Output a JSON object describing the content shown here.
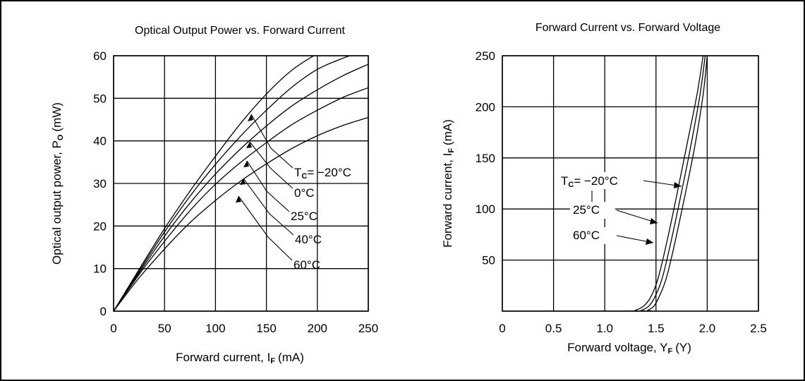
{
  "chart_data": [
    {
      "type": "line",
      "title": "Optical Output Power vs. Forward Current",
      "xlabel": "Forward current, I",
      "xlabel_sub": "F",
      "xlabel_unit": "(mA)",
      "ylabel": "Optical output power, P",
      "ylabel_sub": "O",
      "ylabel_unit": "(mW)",
      "xlim": [
        0,
        250
      ],
      "ylim": [
        0,
        60
      ],
      "xticks": [
        0,
        50,
        100,
        150,
        200,
        250
      ],
      "yticks": [
        0,
        10,
        20,
        30,
        40,
        50,
        60
      ],
      "grid": true,
      "series": [
        {
          "name": "-20°C",
          "x": [
            0,
            25,
            50,
            75,
            100,
            125,
            150,
            175,
            200,
            225,
            250
          ],
          "y": [
            0,
            9.8,
            19.4,
            28.2,
            36.4,
            44.2,
            51.0,
            56.6,
            60.5,
            63.5,
            66.0
          ]
        },
        {
          "name": "0°C",
          "x": [
            0,
            25,
            50,
            75,
            100,
            125,
            150,
            175,
            200,
            225,
            250
          ],
          "y": [
            0,
            9.4,
            18.6,
            27.0,
            34.5,
            41.2,
            47.2,
            52.6,
            56.8,
            59.4,
            61.5
          ]
        },
        {
          "name": "25°C",
          "x": [
            0,
            25,
            50,
            75,
            100,
            125,
            150,
            175,
            200,
            225,
            250
          ],
          "y": [
            0,
            9.0,
            17.6,
            25.4,
            32.2,
            38.2,
            43.5,
            48.2,
            52.0,
            55.3,
            58.0
          ]
        },
        {
          "name": "40°C",
          "x": [
            0,
            25,
            50,
            75,
            100,
            125,
            150,
            175,
            200,
            225,
            250
          ],
          "y": [
            0,
            8.6,
            16.4,
            23.6,
            29.8,
            35.0,
            39.6,
            43.8,
            47.2,
            50.2,
            52.5
          ]
        },
        {
          "name": "60°C",
          "x": [
            0,
            25,
            50,
            75,
            100,
            125,
            150,
            175,
            200,
            225,
            250
          ],
          "y": [
            0,
            7.8,
            14.6,
            20.8,
            26.0,
            30.6,
            34.6,
            38.2,
            41.2,
            43.6,
            45.5
          ]
        }
      ],
      "annotations": [
        {
          "prefix": "T",
          "sub": "C",
          "text": "= −20°C"
        },
        {
          "prefix": "",
          "sub": "",
          "text": "0°C"
        },
        {
          "prefix": "",
          "sub": "",
          "text": "25°C"
        },
        {
          "prefix": "",
          "sub": "",
          "text": "40°C"
        },
        {
          "prefix": "",
          "sub": "",
          "text": "60°C"
        }
      ]
    },
    {
      "type": "line",
      "title": "Forward Current vs. Forward Voltage",
      "xlabel": "Forward voltage,  Y",
      "xlabel_sub": "F",
      "xlabel_unit": "(Y)",
      "ylabel": "Forward current, I",
      "ylabel_sub": "F",
      "ylabel_unit": "(mA)",
      "xlim": [
        0,
        2.5
      ],
      "ylim": [
        0,
        250
      ],
      "xticks": [
        "0",
        "0.5",
        "1.0",
        "1.5",
        "2.0",
        "2.5"
      ],
      "yticks": [
        "50",
        "100",
        "150",
        "200",
        "250"
      ],
      "grid": true,
      "series": [
        {
          "name": "-20°C",
          "x": [
            0,
            1.2,
            1.3,
            1.38,
            1.45,
            1.52,
            1.6,
            1.7,
            1.8,
            1.9,
            1.96
          ],
          "y": [
            0,
            0,
            1,
            5,
            14,
            32,
            65,
            112,
            162,
            212,
            250
          ]
        },
        {
          "name": "25°C",
          "x": [
            0,
            1.27,
            1.36,
            1.43,
            1.49,
            1.56,
            1.64,
            1.74,
            1.84,
            1.93,
            1.98
          ],
          "y": [
            0,
            0,
            1,
            5,
            14,
            32,
            65,
            112,
            162,
            212,
            250
          ]
        },
        {
          "name": "60°C",
          "x": [
            0,
            1.33,
            1.42,
            1.48,
            1.53,
            1.6,
            1.68,
            1.78,
            1.88,
            1.96,
            2.0
          ],
          "y": [
            0,
            0,
            1,
            5,
            14,
            32,
            65,
            112,
            162,
            212,
            250
          ]
        }
      ],
      "annotations": [
        {
          "prefix": "T",
          "sub": "C",
          "text": "= −20°C"
        },
        {
          "prefix": "",
          "sub": "",
          "text": "25°C"
        },
        {
          "prefix": "",
          "sub": "",
          "text": "60°C"
        }
      ]
    }
  ]
}
